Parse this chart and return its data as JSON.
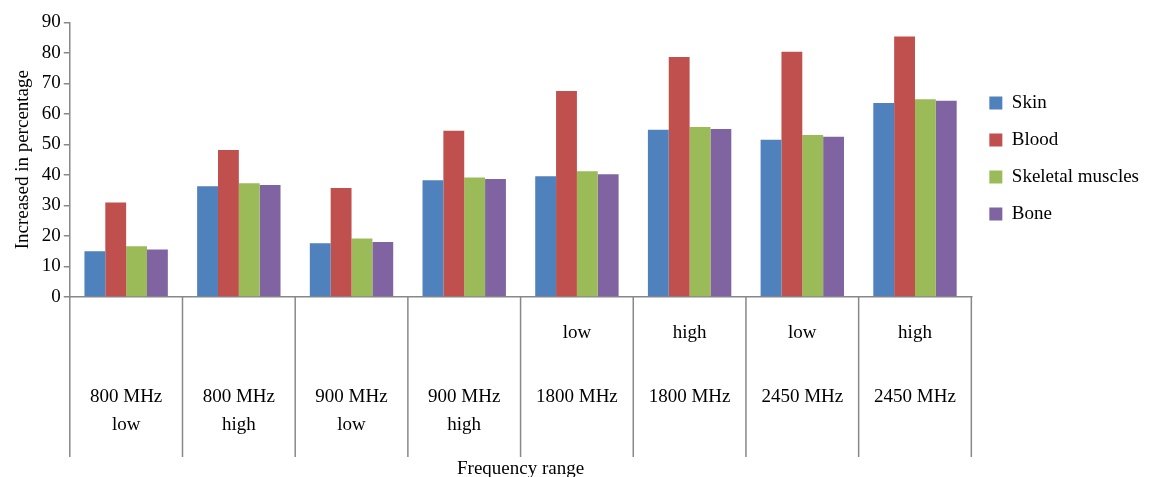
{
  "chart_data": {
    "type": "bar",
    "xlabel": "Frequency range",
    "ylabel": "Increased in percentage",
    "categories": [
      "800 MHz\nlow",
      "800 MHz\nhigh",
      "900 MHz\nlow",
      "900 MHz\nhigh",
      "low\n\n1800 MHz",
      "high\n\n1800 MHz",
      "low\n\n2450 MHz",
      "high\n\n2450 MHz"
    ],
    "series": [
      {
        "name": "Skin",
        "color": "#4f81bd",
        "values": [
          15.0,
          36.3,
          17.6,
          38.3,
          39.6,
          54.8,
          51.5,
          63.6
        ]
      },
      {
        "name": "Blood",
        "color": "#c0504d",
        "values": [
          31.0,
          48.2,
          35.7,
          54.5,
          67.5,
          78.7,
          80.4,
          85.4
        ]
      },
      {
        "name": "Skeletal muscles",
        "color": "#9bbb59",
        "values": [
          16.6,
          37.3,
          19.2,
          39.2,
          41.2,
          55.7,
          53.1,
          64.8
        ]
      },
      {
        "name": "Bone",
        "color": "#8064a2",
        "values": [
          15.6,
          36.7,
          18.0,
          38.7,
          40.2,
          55.1,
          52.5,
          64.3
        ]
      }
    ],
    "ylim": [
      0,
      90
    ],
    "yticks": [
      0,
      10,
      20,
      30,
      40,
      50,
      60,
      70,
      80,
      90
    ],
    "grid": false,
    "legend": "right"
  }
}
